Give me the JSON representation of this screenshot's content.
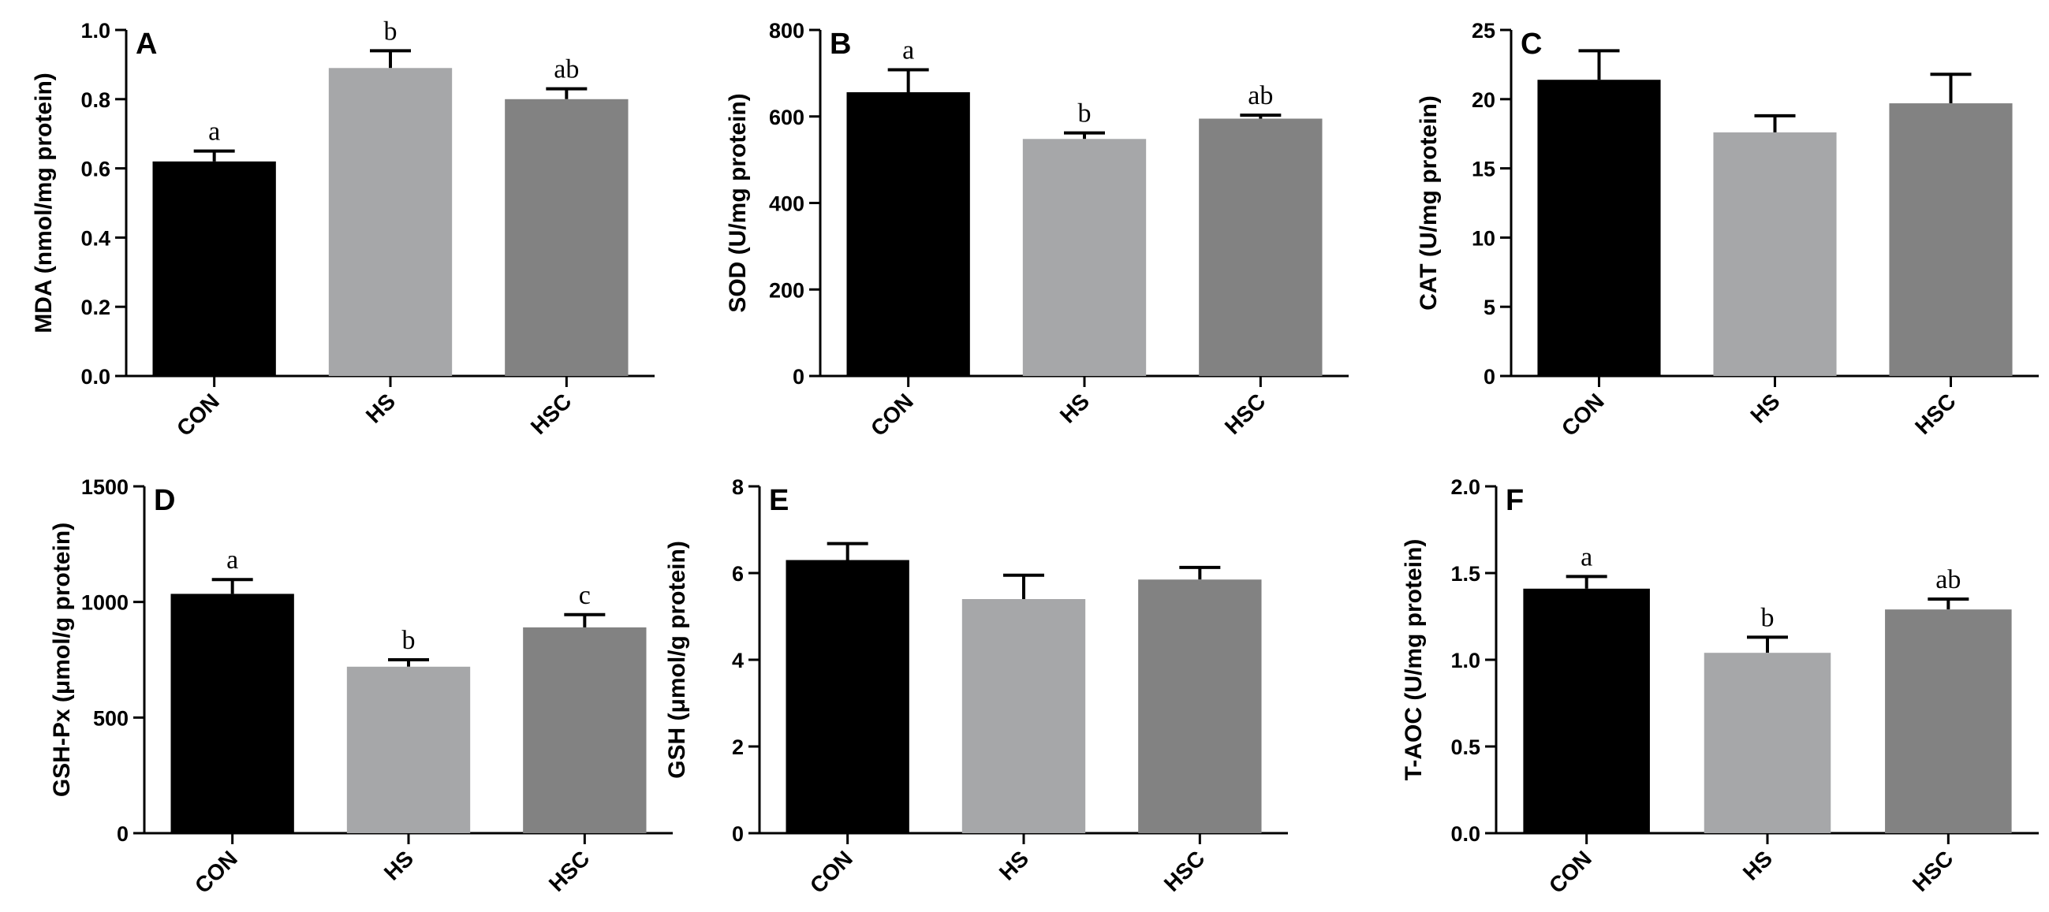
{
  "figure": {
    "background": "#ffffff"
  },
  "colors": {
    "CON": "#000000",
    "HS": "#a6a7a9",
    "HSC": "#828282",
    "axis": "#000000"
  },
  "chart_data": [
    {
      "type": "bar",
      "panel": "A",
      "categories": [
        "CON",
        "HS",
        "HSC"
      ],
      "values": [
        0.62,
        0.89,
        0.8
      ],
      "errors": [
        0.03,
        0.05,
        0.03
      ],
      "significance": [
        "a",
        "b",
        "ab"
      ],
      "ylabel": "MDA (nmol/mg protein)",
      "ylim": [
        0,
        1.0
      ],
      "yticks": [
        0,
        0.2,
        0.4,
        0.6,
        0.8,
        1.0
      ],
      "ytick_labels": [
        "0.0",
        "0.2",
        "0.4",
        "0.6",
        "0.8",
        "1.0"
      ]
    },
    {
      "type": "bar",
      "panel": "B",
      "categories": [
        "CON",
        "HS",
        "HSC"
      ],
      "values": [
        656,
        548,
        595
      ],
      "errors": [
        52,
        14,
        8
      ],
      "significance": [
        "a",
        "b",
        "ab"
      ],
      "ylabel": "SOD (U/mg protein)",
      "ylim": [
        0,
        800
      ],
      "yticks": [
        0,
        200,
        400,
        600,
        800
      ],
      "ytick_labels": [
        "0",
        "200",
        "400",
        "600",
        "800"
      ]
    },
    {
      "type": "bar",
      "panel": "C",
      "categories": [
        "CON",
        "HS",
        "HSC"
      ],
      "values": [
        21.4,
        17.6,
        19.7
      ],
      "errors": [
        2.1,
        1.2,
        2.1
      ],
      "significance": [
        "",
        "",
        ""
      ],
      "ylabel": "CAT (U/mg protein)",
      "ylim": [
        0,
        25
      ],
      "yticks": [
        0,
        5,
        10,
        15,
        20,
        25
      ],
      "ytick_labels": [
        "0",
        "5",
        "10",
        "15",
        "20",
        "25"
      ]
    },
    {
      "type": "bar",
      "panel": "D",
      "categories": [
        "CON",
        "HS",
        "HSC"
      ],
      "values": [
        1035,
        720,
        890
      ],
      "errors": [
        62,
        30,
        55
      ],
      "significance": [
        "a",
        "b",
        "c"
      ],
      "ylabel": "GSH-Px (μmol/g protein)",
      "ylim": [
        0,
        1500
      ],
      "yticks": [
        0,
        500,
        1000,
        1500
      ],
      "ytick_labels": [
        "0",
        "500",
        "1000",
        "1500"
      ]
    },
    {
      "type": "bar",
      "panel": "E",
      "categories": [
        "CON",
        "HS",
        "HSC"
      ],
      "values": [
        6.3,
        5.4,
        5.85
      ],
      "errors": [
        0.38,
        0.55,
        0.28
      ],
      "significance": [
        "",
        "",
        ""
      ],
      "ylabel": "GSH (μmol/g protein)",
      "ylim": [
        0,
        8
      ],
      "yticks": [
        0,
        2,
        4,
        6,
        8
      ],
      "ytick_labels": [
        "0",
        "2",
        "4",
        "6",
        "8"
      ]
    },
    {
      "type": "bar",
      "panel": "F",
      "categories": [
        "CON",
        "HS",
        "HSC"
      ],
      "values": [
        1.41,
        1.04,
        1.29
      ],
      "errors": [
        0.07,
        0.09,
        0.06
      ],
      "significance": [
        "a",
        "b",
        "ab"
      ],
      "ylabel": "T-AOC (U/mg protein)",
      "ylim": [
        0,
        2.0
      ],
      "yticks": [
        0,
        0.5,
        1.0,
        1.5,
        2.0
      ],
      "ytick_labels": [
        "0.0",
        "0.5",
        "1.0",
        "1.5",
        "2.0"
      ]
    }
  ]
}
